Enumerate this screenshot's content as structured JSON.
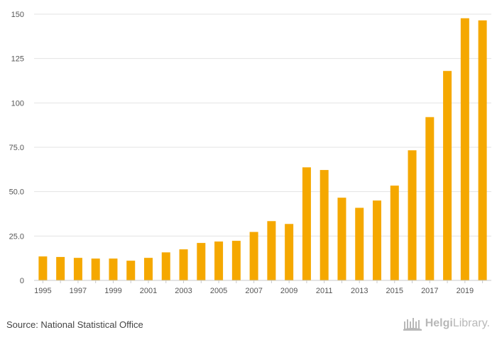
{
  "chart_data": {
    "type": "bar",
    "title": "",
    "xlabel": "",
    "ylabel": "",
    "categories": [
      "1995",
      "1996",
      "1997",
      "1998",
      "1999",
      "2000",
      "2001",
      "2002",
      "2003",
      "2004",
      "2005",
      "2006",
      "2007",
      "2008",
      "2009",
      "2010",
      "2011",
      "2012",
      "2013",
      "2014",
      "2015",
      "2016",
      "2017",
      "2018",
      "2019",
      "2020"
    ],
    "x_tick_labels": [
      "1995",
      "1997",
      "1999",
      "2001",
      "2003",
      "2005",
      "2007",
      "2009",
      "2011",
      "2013",
      "2015",
      "2017",
      "2019"
    ],
    "values": [
      13.5,
      13.2,
      12.7,
      12.3,
      12.3,
      11.1,
      12.7,
      15.8,
      17.5,
      21.1,
      21.9,
      22.3,
      27.3,
      33.4,
      31.8,
      63.7,
      62.2,
      46.6,
      40.9,
      45.0,
      53.4,
      73.3,
      92.0,
      118.0,
      147.7,
      146.5
    ],
    "ylim": [
      0,
      150
    ],
    "y_ticks": [
      0,
      25,
      50,
      75,
      100,
      125,
      150
    ],
    "y_tick_labels": [
      "0",
      "25.0",
      "50.0",
      "75.0",
      "100",
      "125",
      "150"
    ],
    "bar_color": "#f5a800",
    "grid": true
  },
  "footer": {
    "source": "Source: National Statistical Office",
    "brand_bold": "Helgi",
    "brand_light": "Library.",
    "brand_icon": "library-logo-icon",
    "brand_color": "#b8b8b8"
  }
}
